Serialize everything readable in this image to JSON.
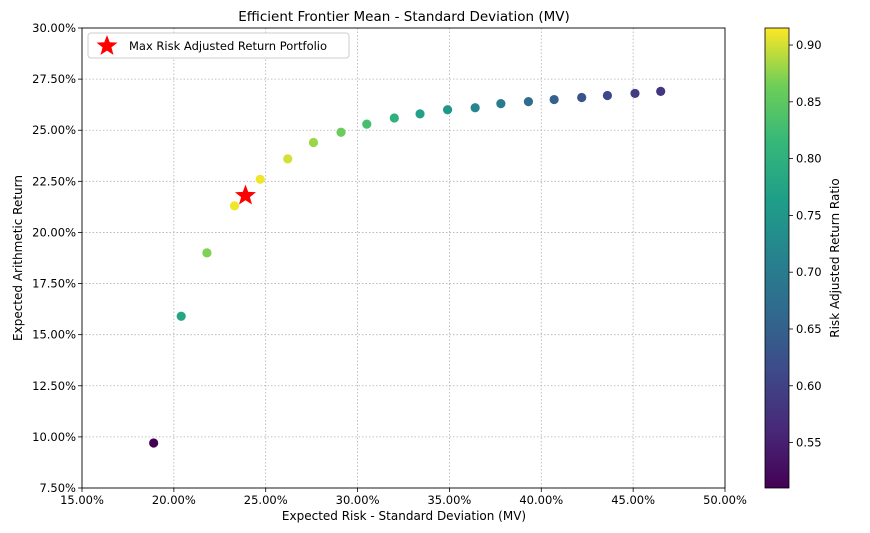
{
  "chart_data": {
    "type": "scatter",
    "title": "Efficient Frontier Mean - Standard Deviation (MV)",
    "xlabel": "Expected Risk - Standard Deviation (MV)",
    "ylabel": "Expected Arithmetic Return",
    "xlim": [
      0.15,
      0.5
    ],
    "ylim": [
      0.075,
      0.3
    ],
    "x_ticks": [
      0.15,
      0.2,
      0.25,
      0.3,
      0.35,
      0.4,
      0.45,
      0.5
    ],
    "x_tick_labels": [
      "15.00%",
      "20.00%",
      "25.00%",
      "30.00%",
      "35.00%",
      "40.00%",
      "45.00%",
      "50.00%"
    ],
    "y_ticks": [
      0.075,
      0.1,
      0.125,
      0.15,
      0.175,
      0.2,
      0.225,
      0.25,
      0.275,
      0.3
    ],
    "y_tick_labels": [
      "7.50%",
      "10.00%",
      "12.50%",
      "15.00%",
      "17.50%",
      "20.00%",
      "22.50%",
      "25.00%",
      "27.50%",
      "30.00%"
    ],
    "grid": true,
    "legend_position": "top-left",
    "points": [
      {
        "x": 0.189,
        "y": 0.097,
        "ratio": 0.51
      },
      {
        "x": 0.204,
        "y": 0.159,
        "ratio": 0.78
      },
      {
        "x": 0.218,
        "y": 0.19,
        "ratio": 0.87
      },
      {
        "x": 0.233,
        "y": 0.213,
        "ratio": 0.91
      },
      {
        "x": 0.247,
        "y": 0.226,
        "ratio": 0.91
      },
      {
        "x": 0.262,
        "y": 0.236,
        "ratio": 0.9
      },
      {
        "x": 0.276,
        "y": 0.244,
        "ratio": 0.88
      },
      {
        "x": 0.291,
        "y": 0.249,
        "ratio": 0.86
      },
      {
        "x": 0.305,
        "y": 0.253,
        "ratio": 0.83
      },
      {
        "x": 0.32,
        "y": 0.256,
        "ratio": 0.8
      },
      {
        "x": 0.334,
        "y": 0.258,
        "ratio": 0.77
      },
      {
        "x": 0.349,
        "y": 0.26,
        "ratio": 0.75
      },
      {
        "x": 0.364,
        "y": 0.261,
        "ratio": 0.72
      },
      {
        "x": 0.378,
        "y": 0.263,
        "ratio": 0.7
      },
      {
        "x": 0.393,
        "y": 0.264,
        "ratio": 0.67
      },
      {
        "x": 0.407,
        "y": 0.265,
        "ratio": 0.65
      },
      {
        "x": 0.422,
        "y": 0.266,
        "ratio": 0.63
      },
      {
        "x": 0.436,
        "y": 0.267,
        "ratio": 0.61
      },
      {
        "x": 0.451,
        "y": 0.268,
        "ratio": 0.59
      },
      {
        "x": 0.465,
        "y": 0.269,
        "ratio": 0.58
      }
    ],
    "highlight": {
      "label": "Max Risk Adjusted Return Portfolio",
      "x": 0.239,
      "y": 0.218,
      "color": "#ff0000",
      "marker": "star"
    },
    "colorbar": {
      "label": "Risk Adjusted Return Ratio",
      "colormap": "viridis",
      "range": [
        0.51,
        0.915
      ],
      "ticks": [
        0.55,
        0.6,
        0.65,
        0.7,
        0.75,
        0.8,
        0.85,
        0.9
      ],
      "tick_labels": [
        "0.55",
        "0.60",
        "0.65",
        "0.70",
        "0.75",
        "0.80",
        "0.85",
        "0.90"
      ]
    }
  }
}
